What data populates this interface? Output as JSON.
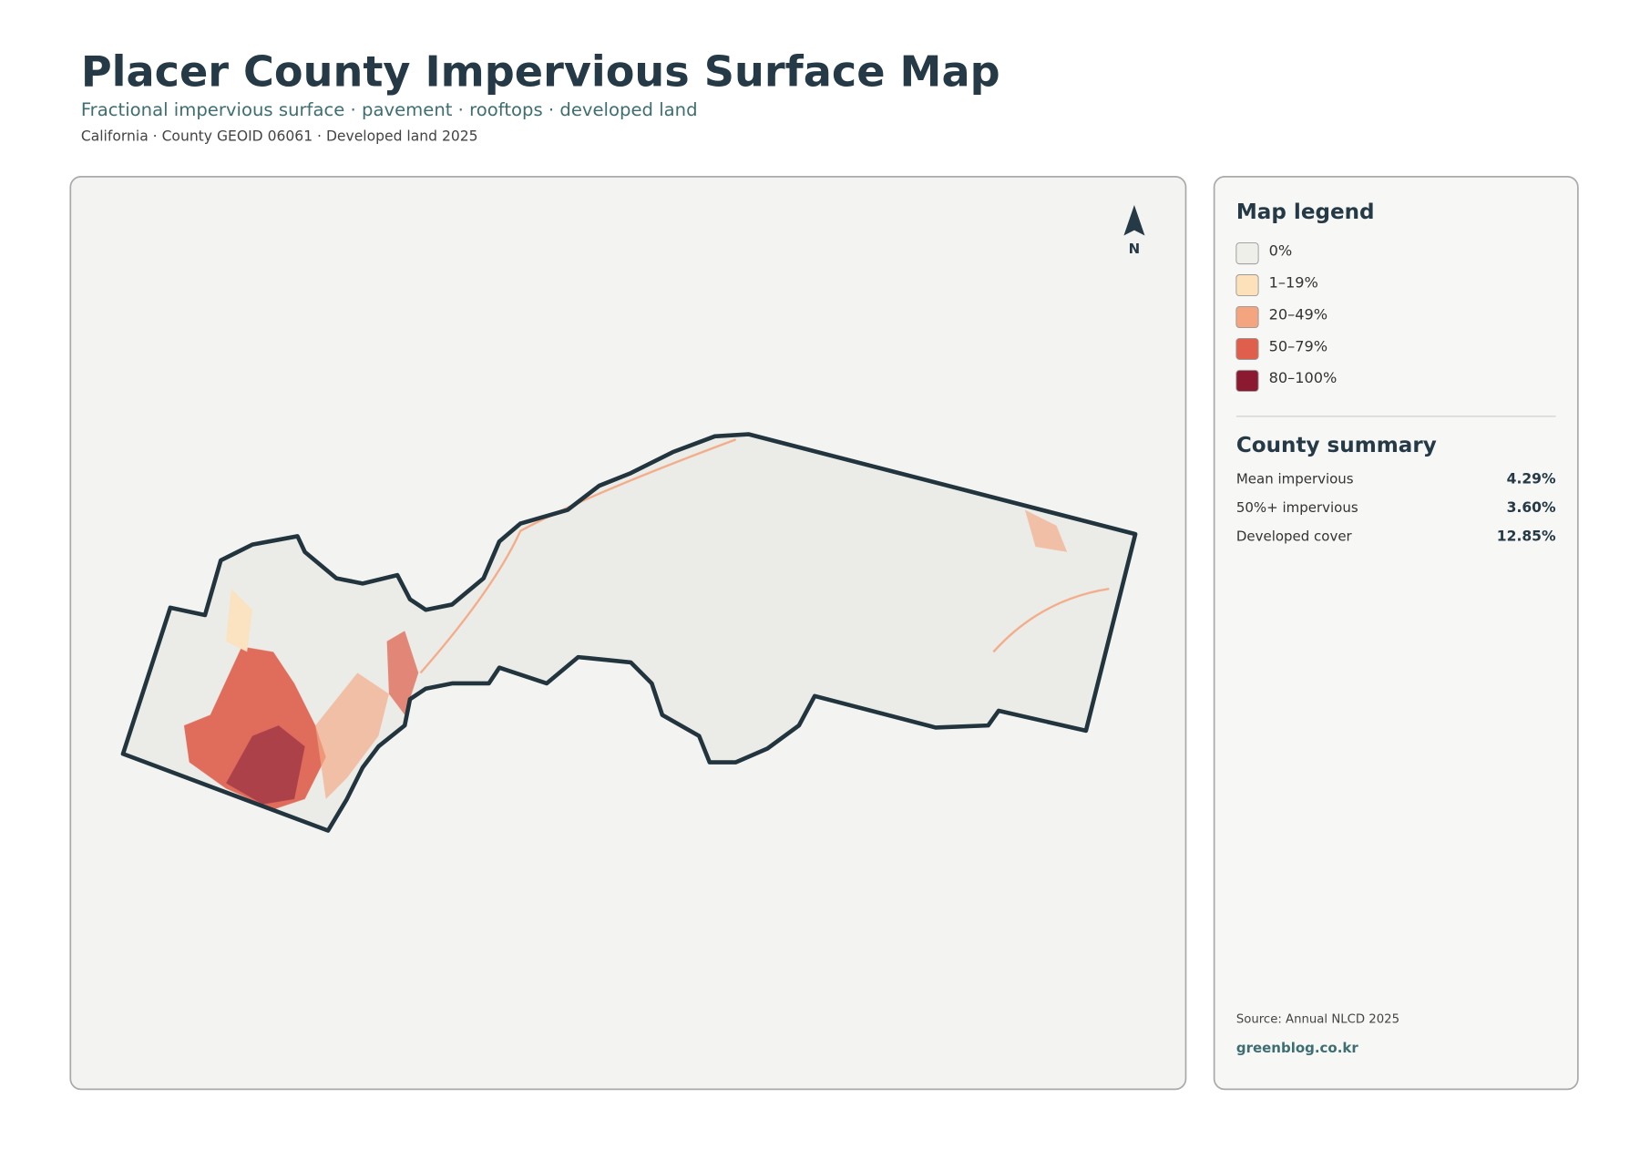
{
  "header": {
    "title": "Placer County Impervious Surface Map",
    "subtitle": "Fractional impervious surface · pavement · rooftops · developed land",
    "meta": "California · County GEOID 06061 · Developed land 2025"
  },
  "map": {
    "north_label": "N"
  },
  "legend": {
    "title": "Map legend",
    "items": [
      {
        "label": "0%",
        "color": "#efefea"
      },
      {
        "label": "1–19%",
        "color": "#fde1bb"
      },
      {
        "label": "20–49%",
        "color": "#f4a47e"
      },
      {
        "label": "50–79%",
        "color": "#df5f4c"
      },
      {
        "label": "80–100%",
        "color": "#8b1a30"
      }
    ]
  },
  "summary": {
    "title": "County summary",
    "rows": [
      {
        "label": "Mean impervious",
        "value": "4.29%"
      },
      {
        "label": "50%+ impervious",
        "value": "3.60%"
      },
      {
        "label": "Developed cover",
        "value": "12.85%"
      }
    ]
  },
  "footer": {
    "source": "Source: Annual NLCD 2025",
    "brand": "greenblog.co.kr"
  }
}
